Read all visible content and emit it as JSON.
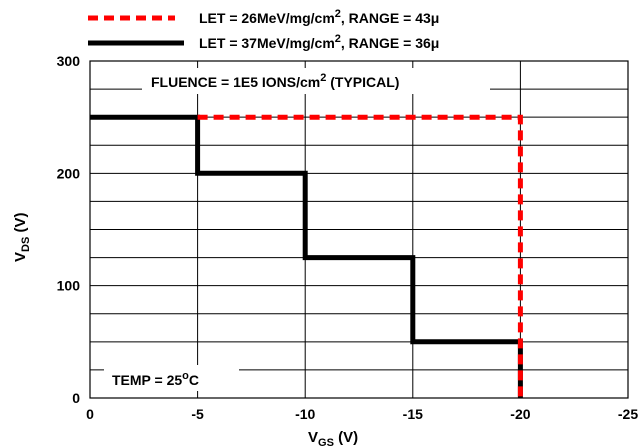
{
  "chart_data": {
    "type": "line",
    "xlabel": {
      "main": "V",
      "sub": "GS",
      "tail": " (V)"
    },
    "ylabel": {
      "main": "V",
      "sub": "DS",
      "tail": " (V)"
    },
    "xlim": [
      0,
      -25
    ],
    "ylim": [
      0,
      300
    ],
    "x_ticks": [
      0,
      -5,
      -10,
      -15,
      -20,
      -25
    ],
    "x_tick_labels": [
      "0",
      "-5",
      "-10",
      "-15",
      "-20",
      "-25"
    ],
    "y_ticks": [
      0,
      100,
      200,
      300
    ],
    "y_tick_labels": [
      "0",
      "100",
      "200",
      "300"
    ],
    "y_minor_step": 25,
    "x_minor_step": 5,
    "grid": true,
    "legend_position": "top",
    "series": [
      {
        "name": {
          "pre": "LET = 26MeV/mg/cm",
          "sup": "2",
          "post": ", RANGE = 43μ"
        },
        "color": "#ff0000",
        "style": "dashed",
        "x": [
          -5,
          -20,
          -20
        ],
        "y": [
          250,
          250,
          0
        ]
      },
      {
        "name": {
          "pre": "LET = 37MeV/mg/cm",
          "sup": "2",
          "post": ", RANGE = 36μ"
        },
        "color": "#000000",
        "style": "solid",
        "x": [
          0,
          -5,
          -5,
          -10,
          -10,
          -15,
          -15,
          -20,
          -20
        ],
        "y": [
          250,
          250,
          200,
          200,
          125,
          125,
          50,
          50,
          0
        ]
      }
    ],
    "annotations": [
      {
        "id": "fluence",
        "pre": "FLUENCE = 1E5 IONS/cm",
        "sup": "2",
        "post": " (TYPICAL)"
      },
      {
        "id": "temp",
        "pre": "TEMP = 25",
        "sup": "o",
        "post": "C"
      }
    ]
  }
}
